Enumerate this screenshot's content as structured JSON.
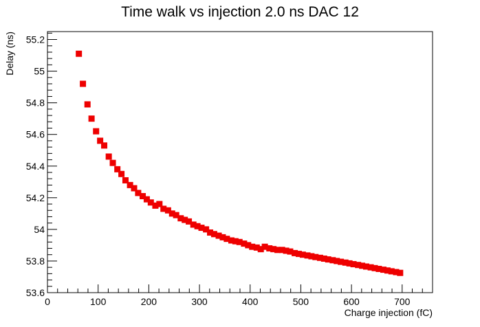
{
  "chart_data": {
    "type": "scatter",
    "title": "Time walk vs injection 2.0 ns DAC 12",
    "xlabel": "Charge injection (fC)",
    "ylabel": "Delay (ns)",
    "xlim": [
      0,
      760
    ],
    "ylim": [
      53.6,
      55.25
    ],
    "x_ticks": [
      0,
      100,
      200,
      300,
      400,
      500,
      600,
      700
    ],
    "x_tick_labels": [
      "0",
      "100",
      "200",
      "300",
      "400",
      "500",
      "600",
      "700"
    ],
    "y_ticks": [
      53.6,
      53.8,
      54.0,
      54.2,
      54.4,
      54.6,
      54.8,
      55.0,
      55.2
    ],
    "y_tick_labels": [
      "53.6",
      "53.8",
      "54",
      "54.2",
      "54.4",
      "54.6",
      "54.8",
      "55",
      "55.2"
    ],
    "grid": false,
    "marker_color": "#ee0000",
    "series": [
      {
        "x": [
          62,
          70,
          79,
          87,
          96,
          104,
          112,
          121,
          129,
          138,
          146,
          154,
          163,
          171,
          179,
          188,
          196,
          204,
          213,
          221,
          229,
          238,
          246,
          254,
          263,
          271,
          279,
          288,
          296,
          304,
          313,
          321,
          329,
          338,
          346,
          354,
          363,
          371,
          379,
          388,
          396,
          404,
          413,
          421,
          429,
          438,
          446,
          454,
          463,
          471,
          479,
          488,
          496,
          504,
          513,
          521,
          529,
          538,
          546,
          554,
          563,
          571,
          579,
          588,
          596,
          604,
          613,
          621,
          629,
          638,
          646,
          654,
          663,
          671,
          679,
          688,
          696
        ],
        "y": [
          55.11,
          54.92,
          54.79,
          54.7,
          54.62,
          54.56,
          54.53,
          54.46,
          54.42,
          54.38,
          54.35,
          54.31,
          54.28,
          54.26,
          54.23,
          54.21,
          54.19,
          54.17,
          54.15,
          54.16,
          54.13,
          54.12,
          54.1,
          54.09,
          54.07,
          54.06,
          54.05,
          54.03,
          54.02,
          54.01,
          54.0,
          53.98,
          53.97,
          53.96,
          53.95,
          53.94,
          53.93,
          53.925,
          53.92,
          53.91,
          53.9,
          53.89,
          53.885,
          53.875,
          53.89,
          53.88,
          53.875,
          53.87,
          53.87,
          53.865,
          53.86,
          53.85,
          53.845,
          53.84,
          53.835,
          53.83,
          53.825,
          53.82,
          53.815,
          53.81,
          53.805,
          53.8,
          53.795,
          53.79,
          53.785,
          53.78,
          53.775,
          53.77,
          53.765,
          53.76,
          53.755,
          53.75,
          53.745,
          53.74,
          53.735,
          53.73,
          53.725
        ]
      }
    ]
  }
}
